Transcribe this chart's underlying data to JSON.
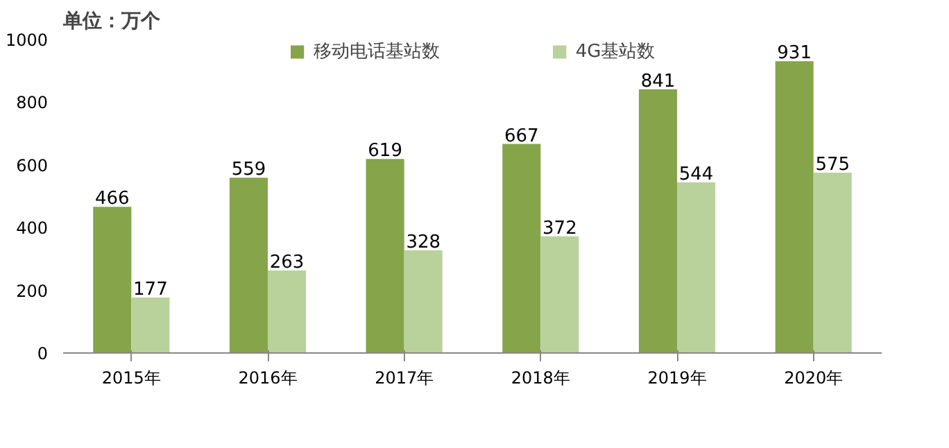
{
  "chart_data": {
    "type": "bar",
    "title": "单位：万个",
    "categories": [
      "2015年",
      "2016年",
      "2017年",
      "2018年",
      "2019年",
      "2020年"
    ],
    "series": [
      {
        "name": "移动电话基站数",
        "color": "#86a44a",
        "values": [
          466,
          559,
          619,
          667,
          841,
          931
        ]
      },
      {
        "name": "4G基站数",
        "color": "#b9d29c",
        "values": [
          177,
          263,
          328,
          372,
          544,
          575
        ]
      }
    ],
    "ylim": [
      0,
      1000
    ],
    "yticks": [
      0,
      200,
      400,
      600,
      800,
      1000
    ],
    "grid": false,
    "legend": "top",
    "data_labels": true
  }
}
